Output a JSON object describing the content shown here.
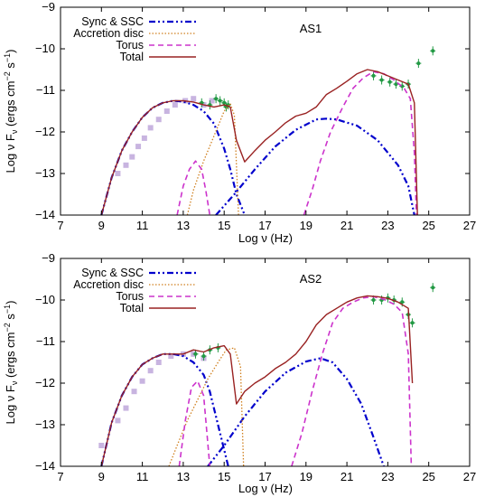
{
  "figure": {
    "panels": [
      {
        "title": "AS1",
        "xlabel": "Log ν (Hz)",
        "ylabel_main": "Log ν F",
        "ylabel_sub": "ν",
        "ylabel_unit_open": " (ergs cm",
        "ylabel_unit_exp1": "−2",
        "ylabel_unit_mid": " s",
        "ylabel_unit_exp2": "−1",
        "ylabel_unit_close": ")",
        "xticks": [
          "7",
          "9",
          "11",
          "13",
          "15",
          "17",
          "19",
          "21",
          "23",
          "25",
          "27"
        ],
        "yticks": [
          "−9",
          "−10",
          "−11",
          "−12",
          "−13",
          "−14"
        ],
        "legend": [
          "Sync & SSC",
          "Accretion disc",
          "Torus",
          "Total"
        ]
      },
      {
        "title": "AS2",
        "xlabel": "Log ν (Hz)",
        "ylabel_main": "Log ν F",
        "ylabel_sub": "ν",
        "ylabel_unit_open": " (ergs cm",
        "ylabel_unit_exp1": "−2",
        "ylabel_unit_mid": " s",
        "ylabel_unit_exp2": "−1",
        "ylabel_unit_close": ")",
        "xticks": [
          "7",
          "9",
          "11",
          "13",
          "15",
          "17",
          "19",
          "21",
          "23",
          "25",
          "27"
        ],
        "yticks": [
          "−9",
          "−10",
          "−11",
          "−12",
          "−13",
          "−14"
        ],
        "legend": [
          "Sync & SSC",
          "Accretion disc",
          "Torus",
          "Total"
        ]
      }
    ]
  },
  "chart_data": [
    {
      "type": "line",
      "title": "AS1",
      "xlabel": "Log ν (Hz)",
      "ylabel": "Log ν Fν (ergs cm−2 s−1)",
      "xlim": [
        7,
        27
      ],
      "ylim": [
        -14,
        -9
      ],
      "colors": {
        "sync": "#0000cc",
        "disc": "#d08020",
        "torus": "#cc33cc",
        "total": "#992222",
        "data_green": "#229944",
        "data_lavender": "#c8b4e0"
      },
      "series": [
        {
          "name": "Sync & SSC",
          "style": "dash-dot",
          "x": [
            9,
            9.5,
            10,
            10.5,
            11,
            11.5,
            12,
            12.5,
            13,
            13.5,
            14,
            14.5,
            15,
            15.3,
            15.6,
            16
          ],
          "y": [
            -14,
            -13.1,
            -12.45,
            -12.0,
            -11.65,
            -11.42,
            -11.3,
            -11.25,
            -11.27,
            -11.35,
            -11.5,
            -11.8,
            -12.4,
            -12.9,
            -13.5,
            -14
          ]
        },
        {
          "name": "Sync & SSC",
          "style": "dash-dot",
          "x": [
            14.6,
            15.5,
            16.5,
            17.5,
            18.5,
            19.5,
            20,
            20.5,
            21.5,
            22.5,
            23.5,
            24,
            24.3
          ],
          "y": [
            -14,
            -13.5,
            -12.9,
            -12.35,
            -11.95,
            -11.7,
            -11.68,
            -11.7,
            -11.85,
            -12.2,
            -12.8,
            -13.3,
            -14
          ]
        },
        {
          "name": "Accretion disc",
          "style": "dotted",
          "x": [
            13.2,
            13.5,
            14,
            14.5,
            15,
            15.3,
            15.5,
            15.7
          ],
          "y": [
            -14,
            -13.4,
            -12.7,
            -12.1,
            -11.5,
            -11.32,
            -11.6,
            -14
          ]
        },
        {
          "name": "Torus",
          "style": "dashed",
          "x": [
            12.7,
            13.0,
            13.3,
            13.6,
            13.9,
            14.1,
            14.3
          ],
          "y": [
            -14,
            -13.3,
            -12.9,
            -12.7,
            -12.9,
            -13.4,
            -14
          ]
        },
        {
          "name": "Torus",
          "style": "dashed",
          "x": [
            18.9,
            19.3,
            19.7,
            20.2,
            20.8,
            21.3,
            21.8,
            22.3,
            22.8,
            23.3,
            23.8,
            24.1,
            24.3,
            24.4
          ],
          "y": [
            -14,
            -13.4,
            -12.7,
            -12.0,
            -11.4,
            -10.95,
            -10.7,
            -10.55,
            -10.6,
            -10.75,
            -10.95,
            -11.2,
            -12.5,
            -14
          ]
        },
        {
          "name": "Total",
          "style": "solid",
          "x": [
            9,
            9.5,
            10,
            10.5,
            11,
            11.5,
            12,
            12.5,
            13,
            13.5,
            14,
            14.5,
            15,
            15.3,
            15.6,
            16.0,
            16.5,
            17,
            17.5,
            18,
            18.5,
            19,
            19.5,
            20,
            20.5,
            21,
            21.5,
            22,
            22.5,
            23,
            23.5,
            24,
            24.3,
            24.45
          ],
          "y": [
            -14,
            -13.1,
            -12.45,
            -12.0,
            -11.65,
            -11.42,
            -11.3,
            -11.25,
            -11.25,
            -11.28,
            -11.35,
            -11.4,
            -11.35,
            -11.4,
            -12.2,
            -12.72,
            -12.45,
            -12.2,
            -12.0,
            -11.78,
            -11.62,
            -11.55,
            -11.4,
            -11.1,
            -10.95,
            -10.78,
            -10.6,
            -10.5,
            -10.55,
            -10.65,
            -10.75,
            -10.85,
            -11.3,
            -14
          ]
        }
      ],
      "data_points": [
        {
          "name": "radio-optical",
          "color": "lavender",
          "x": [
            9.8,
            10.2,
            10.5,
            10.8,
            11.1,
            11.4,
            11.8,
            12.2,
            12.6,
            13.1,
            13.5,
            14.0,
            14.4
          ],
          "y": [
            -13.0,
            -12.8,
            -12.6,
            -12.35,
            -12.15,
            -11.9,
            -11.7,
            -11.5,
            -11.35,
            -11.25,
            -11.2,
            -11.35,
            -11.25
          ]
        },
        {
          "name": "optical-X",
          "color": "green",
          "x": [
            13.9,
            14.3,
            14.6,
            14.8,
            15.0,
            15.1,
            15.2
          ],
          "y": [
            -11.3,
            -11.35,
            -11.2,
            -11.25,
            -11.3,
            -11.4,
            -11.35
          ]
        },
        {
          "name": "gamma",
          "color": "green",
          "x": [
            22.3,
            22.7,
            23.1,
            23.4,
            23.7,
            24.0,
            24.5,
            25.2
          ],
          "y": [
            -10.65,
            -10.75,
            -10.8,
            -10.85,
            -10.9,
            -10.85,
            -10.35,
            -10.05
          ]
        }
      ]
    },
    {
      "type": "line",
      "title": "AS2",
      "xlabel": "Log ν (Hz)",
      "ylabel": "Log ν Fν (ergs cm−2 s−1)",
      "xlim": [
        7,
        27
      ],
      "ylim": [
        -14,
        -9
      ],
      "colors": {
        "sync": "#0000cc",
        "disc": "#d08020",
        "torus": "#cc33cc",
        "total": "#992222",
        "data_green": "#229944",
        "data_lavender": "#c8b4e0"
      },
      "series": [
        {
          "name": "Sync & SSC",
          "style": "dash-dot",
          "x": [
            9,
            9.5,
            10,
            10.5,
            11,
            11.5,
            12,
            12.5,
            13,
            13.5,
            14,
            14.3,
            14.6,
            14.9,
            15.2
          ],
          "y": [
            -14,
            -12.95,
            -12.3,
            -11.85,
            -11.55,
            -11.4,
            -11.3,
            -11.3,
            -11.35,
            -11.5,
            -11.8,
            -12.2,
            -12.8,
            -13.4,
            -14
          ]
        },
        {
          "name": "Sync & SSC",
          "style": "dash-dot",
          "x": [
            14.2,
            15,
            16,
            17,
            18,
            19,
            19.7,
            20.3,
            21,
            21.7,
            22.3,
            22.8
          ],
          "y": [
            -14,
            -13.5,
            -12.8,
            -12.2,
            -11.75,
            -11.48,
            -11.4,
            -11.5,
            -11.9,
            -12.5,
            -13.3,
            -14
          ]
        },
        {
          "name": "Accretion disc",
          "style": "dotted",
          "x": [
            12.3,
            12.7,
            13.2,
            13.7,
            14.2,
            14.7,
            15.1,
            15.5,
            15.8,
            15.95
          ],
          "y": [
            -14,
            -13.5,
            -12.9,
            -12.4,
            -11.9,
            -11.5,
            -11.2,
            -11.15,
            -11.6,
            -14
          ]
        },
        {
          "name": "Torus",
          "style": "dashed",
          "x": [
            12.8,
            13.1,
            13.4,
            13.7,
            14.0,
            14.3
          ],
          "y": [
            -14,
            -12.9,
            -12.1,
            -11.95,
            -12.3,
            -14
          ]
        },
        {
          "name": "Torus",
          "style": "dashed",
          "x": [
            18.3,
            18.8,
            19.3,
            19.8,
            20.3,
            20.8,
            21.3,
            21.8,
            22.3,
            22.8,
            23.3,
            23.7,
            24.0,
            24.15
          ],
          "y": [
            -14,
            -13.2,
            -12.2,
            -11.3,
            -10.55,
            -10.2,
            -10.05,
            -9.95,
            -9.92,
            -9.98,
            -10.1,
            -10.3,
            -11.3,
            -14
          ]
        },
        {
          "name": "Total",
          "style": "solid",
          "x": [
            9,
            9.5,
            10,
            10.5,
            11,
            11.5,
            12,
            12.5,
            13,
            13.5,
            14,
            14.5,
            15,
            15.3,
            15.6,
            16.0,
            16.5,
            17,
            17.5,
            18,
            18.5,
            19,
            19.5,
            20,
            20.5,
            21,
            21.5,
            22,
            22.5,
            23,
            23.5,
            24,
            24.2
          ],
          "y": [
            -14,
            -12.95,
            -12.3,
            -11.85,
            -11.55,
            -11.4,
            -11.3,
            -11.3,
            -11.3,
            -11.2,
            -11.25,
            -11.15,
            -11.1,
            -11.3,
            -12.5,
            -12.2,
            -12.0,
            -11.85,
            -11.65,
            -11.5,
            -11.3,
            -11.0,
            -10.6,
            -10.35,
            -10.2,
            -10.05,
            -9.95,
            -9.9,
            -9.92,
            -9.96,
            -10.05,
            -10.2,
            -12.0
          ]
        }
      ],
      "data_points": [
        {
          "name": "radio-optical",
          "color": "lavender",
          "x": [
            9.0,
            9.8,
            10.2,
            10.6,
            11.0,
            11.4,
            11.8,
            12.4,
            13.0,
            13.5,
            14.0
          ],
          "y": [
            -13.5,
            -12.9,
            -12.6,
            -12.2,
            -11.95,
            -11.7,
            -11.5,
            -11.35,
            -11.3,
            -11.3,
            -11.4
          ]
        },
        {
          "name": "optical-X",
          "color": "green",
          "x": [
            13.6,
            14.0,
            14.3,
            14.7
          ],
          "y": [
            -11.3,
            -11.35,
            -11.2,
            -11.15
          ]
        },
        {
          "name": "gamma",
          "color": "green",
          "x": [
            22.3,
            22.7,
            23.0,
            23.3,
            23.7,
            24.0,
            24.2,
            25.2
          ],
          "y": [
            -10.0,
            -10.0,
            -9.95,
            -10.0,
            -10.05,
            -10.35,
            -10.55,
            -9.7
          ]
        }
      ]
    }
  ]
}
